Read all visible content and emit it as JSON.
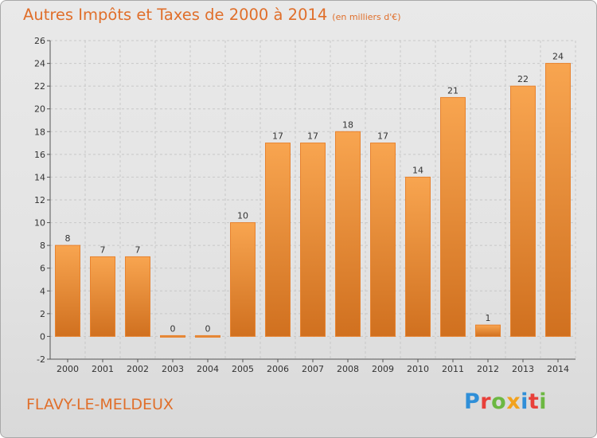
{
  "title": "Autres Impôts et Taxes de 2000 à 2014",
  "subtitle": "(en milliers d'€)",
  "commune": "FLAVY-LE-MELDEUX",
  "logo": {
    "letters": [
      "P",
      "r",
      "o",
      "x",
      "i",
      "t",
      "i"
    ],
    "colors": [
      "#2f8fd8",
      "#e8403a",
      "#6cb842",
      "#f2a21d",
      "#2f8fd8",
      "#e8403a",
      "#6cb842"
    ]
  },
  "chart_data": {
    "type": "bar",
    "title": "Autres Impôts et Taxes de 2000 à 2014",
    "subtitle": "(en milliers d'€)",
    "categories": [
      "2000",
      "2001",
      "2002",
      "2003",
      "2004",
      "2005",
      "2006",
      "2007",
      "2008",
      "2009",
      "2010",
      "2011",
      "2012",
      "2013",
      "2014"
    ],
    "values": [
      8,
      7,
      7,
      0,
      0,
      10,
      17,
      17,
      18,
      17,
      14,
      21,
      1,
      22,
      24
    ],
    "ylim": [
      -2,
      26
    ],
    "yticks": [
      -2,
      0,
      2,
      4,
      6,
      8,
      10,
      12,
      14,
      16,
      18,
      20,
      22,
      24,
      26
    ],
    "grid": true,
    "colors": {
      "bar_light": "#f8a550",
      "bar_dark": "#d7762a",
      "bar_edge": "#e8832f",
      "grid": "#c8c8c8",
      "accent": "#e06f2b"
    }
  }
}
